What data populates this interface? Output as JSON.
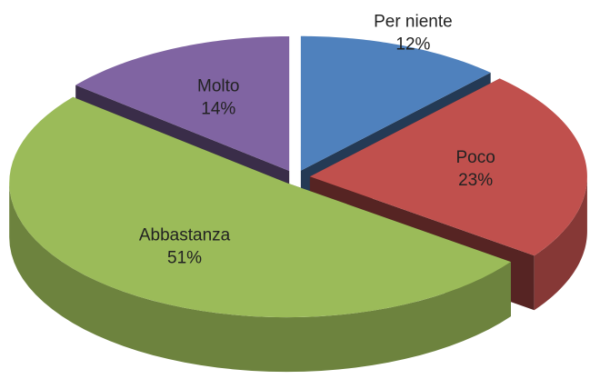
{
  "chart_data": {
    "type": "pie",
    "categories": [
      "Per niente",
      "Poco",
      "Abbastanza",
      "Molto"
    ],
    "values": [
      12,
      23,
      51,
      14
    ],
    "value_labels": [
      "12%",
      "23%",
      "51%",
      "14%"
    ],
    "colors": [
      "#4f81bd",
      "#c0504d",
      "#9bbb59",
      "#8064a2"
    ]
  }
}
